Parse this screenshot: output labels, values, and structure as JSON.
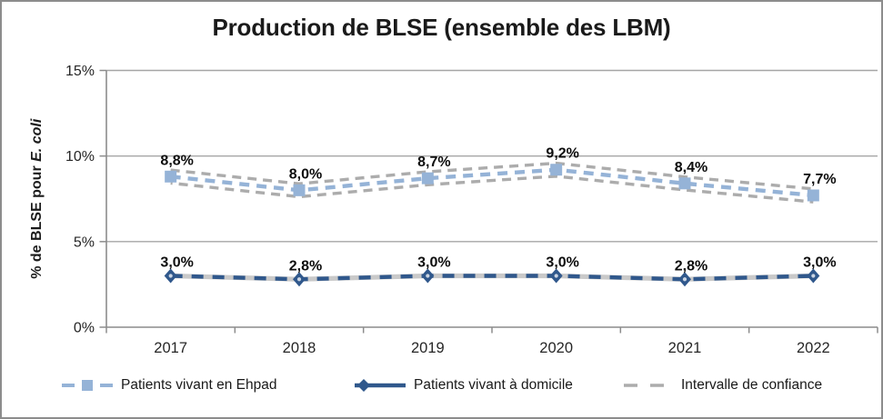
{
  "chart_data": {
    "type": "line",
    "title": "Production de BLSE (ensemble des LBM)",
    "categories": [
      "2017",
      "2018",
      "2019",
      "2020",
      "2021",
      "2022"
    ],
    "series": [
      {
        "name": "Patients vivant en Ehpad",
        "values": [
          8.8,
          8.0,
          8.7,
          9.2,
          8.4,
          7.7
        ],
        "labels": [
          "8,8%",
          "8,0%",
          "8,7%",
          "9,2%",
          "8,4%",
          "7,7%"
        ],
        "color": "#95B3D7",
        "marker": "square",
        "line_style": "dashed",
        "ci_delta": 0.38,
        "ci_style": "dashed-pair"
      },
      {
        "name": "Patients vivant à domicile",
        "values": [
          3.0,
          2.8,
          3.0,
          3.0,
          2.8,
          3.0
        ],
        "labels": [
          "3,0%",
          "2,8%",
          "3,0%",
          "3,0%",
          "2,8%",
          "3,0%"
        ],
        "color": "#30588C",
        "marker": "diamond",
        "line_style": "dashed",
        "ci_delta": 0.1,
        "ci_style": "solid-band"
      }
    ],
    "confidence_legend": "Intervalle de confiance",
    "ci_color": "#ACACAC",
    "band_color": "#C9C9C9",
    "ylabel_prefix": "% de BLSE pour ",
    "ylabel_italic": "E. coli",
    "yticks": [
      {
        "value": 0,
        "label": "0%"
      },
      {
        "value": 5,
        "label": "5%"
      },
      {
        "value": 10,
        "label": "10%"
      },
      {
        "value": 15,
        "label": "15%"
      }
    ],
    "ylim": [
      0,
      15
    ],
    "grid": true,
    "legend_position": "bottom"
  }
}
